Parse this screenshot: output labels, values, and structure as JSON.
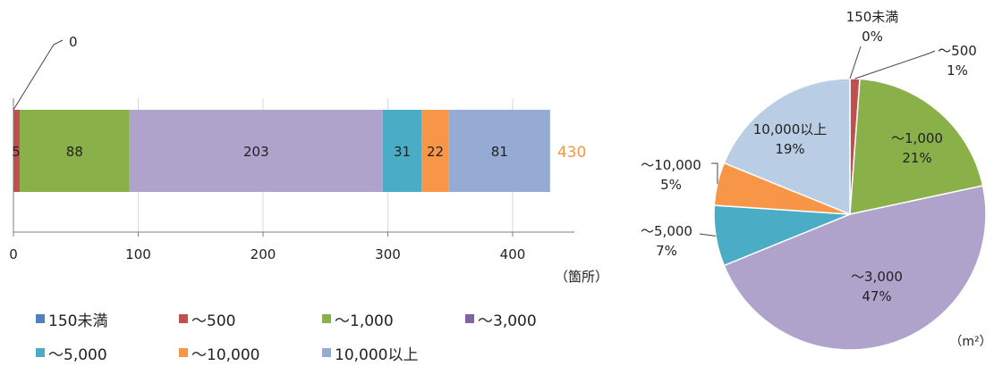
{
  "chart_data": [
    {
      "type": "bar",
      "orientation": "horizontal-stacked",
      "categories": [
        "150未満",
        "～500",
        "～1,000",
        "～3,000",
        "～5,000",
        "～10,000",
        "10,000以上"
      ],
      "values": [
        0,
        5,
        88,
        203,
        31,
        22,
        81
      ],
      "value_labels": [
        "0",
        "5",
        "88",
        "203",
        "31",
        "22",
        "81"
      ],
      "colors": [
        "#4f81bd",
        "#c0504d",
        "#8ab04a",
        "#b0a3cb",
        "#4bacc6",
        "#f79646",
        "#95abd3"
      ],
      "total": 430,
      "total_label": "430",
      "total_color": "#f79646",
      "xlim": [
        0,
        430
      ],
      "xticks": [
        0,
        100,
        200,
        300,
        400
      ],
      "xtick_labels": [
        "0",
        "100",
        "200",
        "300",
        "400"
      ],
      "unit_label": "（箇所）",
      "grid": true,
      "legend_position": "bottom"
    },
    {
      "type": "pie",
      "labels": [
        "150未満",
        "～500",
        "～1,000",
        "～3,000",
        "～5,000",
        "～10,000",
        "10,000以上"
      ],
      "values": [
        0,
        5,
        88,
        203,
        31,
        22,
        81
      ],
      "percent_labels": [
        "0%",
        "1%",
        "21%",
        "47%",
        "7%",
        "5%",
        "19%"
      ],
      "colors": [
        "#4f81bd",
        "#c0504d",
        "#8ab04a",
        "#b0a3cb",
        "#4bacc6",
        "#f79646",
        "#b9cde5"
      ],
      "unit_label": "（m²）"
    }
  ],
  "legend": {
    "items": [
      {
        "label": "150未満",
        "color": "#4f81bd"
      },
      {
        "label": "～500",
        "color": "#c0504d"
      },
      {
        "label": "～1,000",
        "color": "#8ab04a"
      },
      {
        "label": "～3,000",
        "color": "#8064a2"
      },
      {
        "label": "～5,000",
        "color": "#4bacc6"
      },
      {
        "label": "～10,000",
        "color": "#f79646"
      },
      {
        "label": "10,000以上",
        "color": "#95abd3"
      }
    ]
  }
}
